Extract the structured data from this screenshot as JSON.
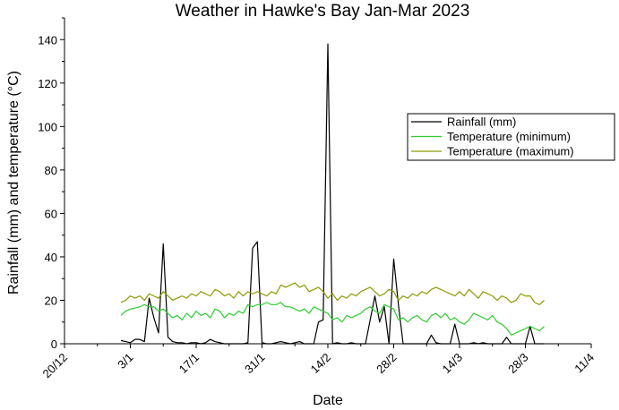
{
  "chart_data": {
    "type": "line",
    "title": "Weather in Hawke's Bay Jan-Mar 2023",
    "xlabel": "Date",
    "ylabel": "Rainfall (mm) and temperature (°C)",
    "xlim": [
      "2022-12-20",
      "2023-04-11"
    ],
    "ylim": [
      0,
      150
    ],
    "x_ticks": [
      {
        "date": "2022-12-20",
        "label": "20/12"
      },
      {
        "date": "2023-01-03",
        "label": "3/1"
      },
      {
        "date": "2023-01-17",
        "label": "17/1"
      },
      {
        "date": "2023-01-31",
        "label": "31/1"
      },
      {
        "date": "2023-02-14",
        "label": "14/2"
      },
      {
        "date": "2023-02-28",
        "label": "28/2"
      },
      {
        "date": "2023-03-14",
        "label": "14/3"
      },
      {
        "date": "2023-03-28",
        "label": "28/3"
      },
      {
        "date": "2023-04-11",
        "label": "11/4"
      }
    ],
    "y_ticks": [
      0,
      20,
      40,
      60,
      80,
      100,
      120,
      140
    ],
    "legend_position": "right",
    "series": [
      {
        "name": "Rainfall (mm)",
        "color": "#000000",
        "points": [
          [
            "2023-01-01",
            1.5
          ],
          [
            "2023-01-02",
            1
          ],
          [
            "2023-01-03",
            0.5
          ],
          [
            "2023-01-04",
            2
          ],
          [
            "2023-01-05",
            2
          ],
          [
            "2023-01-06",
            1
          ],
          [
            "2023-01-07",
            21
          ],
          [
            "2023-01-08",
            12
          ],
          [
            "2023-01-09",
            5
          ],
          [
            "2023-01-10",
            46
          ],
          [
            "2023-01-11",
            3
          ],
          [
            "2023-01-12",
            1
          ],
          [
            "2023-01-13",
            0.5
          ],
          [
            "2023-01-14",
            0.5
          ],
          [
            "2023-01-15",
            0
          ],
          [
            "2023-01-16",
            0.5
          ],
          [
            "2023-01-17",
            0.5
          ],
          [
            "2023-01-18",
            0
          ],
          [
            "2023-01-19",
            0.5
          ],
          [
            "2023-01-20",
            2
          ],
          [
            "2023-01-21",
            1
          ],
          [
            "2023-01-22",
            0.5
          ],
          [
            "2023-01-23",
            0
          ],
          [
            "2023-01-24",
            0
          ],
          [
            "2023-01-25",
            0
          ],
          [
            "2023-01-26",
            0
          ],
          [
            "2023-01-27",
            0
          ],
          [
            "2023-01-28",
            0.5
          ],
          [
            "2023-01-29",
            44
          ],
          [
            "2023-01-30",
            47
          ],
          [
            "2023-01-31",
            0.5
          ],
          [
            "2023-02-01",
            0
          ],
          [
            "2023-02-02",
            0
          ],
          [
            "2023-02-03",
            0.5
          ],
          [
            "2023-02-04",
            1
          ],
          [
            "2023-02-05",
            0.5
          ],
          [
            "2023-02-06",
            0
          ],
          [
            "2023-02-07",
            0.5
          ],
          [
            "2023-02-08",
            1
          ],
          [
            "2023-02-09",
            0
          ],
          [
            "2023-02-10",
            0
          ],
          [
            "2023-02-11",
            0
          ],
          [
            "2023-02-12",
            10
          ],
          [
            "2023-02-13",
            11
          ],
          [
            "2023-02-14",
            138
          ],
          [
            "2023-02-15",
            0
          ],
          [
            "2023-02-16",
            0.5
          ],
          [
            "2023-02-17",
            0
          ],
          [
            "2023-02-18",
            0
          ],
          [
            "2023-02-19",
            0.5
          ],
          [
            "2023-02-20",
            0
          ],
          [
            "2023-02-21",
            0
          ],
          [
            "2023-02-22",
            0
          ],
          [
            "2023-02-23",
            11
          ],
          [
            "2023-02-24",
            22
          ],
          [
            "2023-02-25",
            10
          ],
          [
            "2023-02-26",
            17
          ],
          [
            "2023-02-27",
            0
          ],
          [
            "2023-02-28",
            39
          ],
          [
            "2023-03-01",
            18
          ],
          [
            "2023-03-02",
            0
          ],
          [
            "2023-03-03",
            0
          ],
          [
            "2023-03-04",
            0
          ],
          [
            "2023-03-05",
            0
          ],
          [
            "2023-03-06",
            0
          ],
          [
            "2023-03-07",
            0
          ],
          [
            "2023-03-08",
            4
          ],
          [
            "2023-03-09",
            0.5
          ],
          [
            "2023-03-10",
            0
          ],
          [
            "2023-03-11",
            0
          ],
          [
            "2023-03-12",
            0
          ],
          [
            "2023-03-13",
            9
          ],
          [
            "2023-03-14",
            0
          ],
          [
            "2023-03-15",
            0
          ],
          [
            "2023-03-16",
            0
          ],
          [
            "2023-03-17",
            0.5
          ],
          [
            "2023-03-18",
            0
          ],
          [
            "2023-03-19",
            0.5
          ],
          [
            "2023-03-20",
            0
          ],
          [
            "2023-03-21",
            0
          ],
          [
            "2023-03-22",
            0
          ],
          [
            "2023-03-23",
            0
          ],
          [
            "2023-03-24",
            3
          ],
          [
            "2023-03-25",
            0
          ],
          [
            "2023-03-26",
            0
          ],
          [
            "2023-03-27",
            0
          ],
          [
            "2023-03-28",
            0
          ],
          [
            "2023-03-29",
            8
          ],
          [
            "2023-03-30",
            0
          ],
          [
            "2023-03-31",
            0
          ],
          [
            "2023-04-01",
            0
          ]
        ]
      },
      {
        "name": "Temperature (minimum)",
        "color": "#2ecc2e",
        "points": [
          [
            "2023-01-01",
            13
          ],
          [
            "2023-01-02",
            15
          ],
          [
            "2023-01-03",
            16
          ],
          [
            "2023-01-04",
            16.5
          ],
          [
            "2023-01-05",
            17
          ],
          [
            "2023-01-06",
            18
          ],
          [
            "2023-01-07",
            17
          ],
          [
            "2023-01-08",
            17
          ],
          [
            "2023-01-09",
            15
          ],
          [
            "2023-01-10",
            16
          ],
          [
            "2023-01-11",
            14
          ],
          [
            "2023-01-12",
            12
          ],
          [
            "2023-01-13",
            13
          ],
          [
            "2023-01-14",
            11
          ],
          [
            "2023-01-15",
            14
          ],
          [
            "2023-01-16",
            12
          ],
          [
            "2023-01-17",
            15
          ],
          [
            "2023-01-18",
            13
          ],
          [
            "2023-01-19",
            14
          ],
          [
            "2023-01-20",
            12
          ],
          [
            "2023-01-21",
            16
          ],
          [
            "2023-01-22",
            15
          ],
          [
            "2023-01-23",
            12
          ],
          [
            "2023-01-24",
            14
          ],
          [
            "2023-01-25",
            13
          ],
          [
            "2023-01-26",
            15
          ],
          [
            "2023-01-27",
            14
          ],
          [
            "2023-01-28",
            18
          ],
          [
            "2023-01-29",
            17
          ],
          [
            "2023-01-30",
            18
          ],
          [
            "2023-01-31",
            18
          ],
          [
            "2023-02-01",
            19
          ],
          [
            "2023-02-02",
            18
          ],
          [
            "2023-02-03",
            18
          ],
          [
            "2023-02-04",
            19
          ],
          [
            "2023-02-05",
            17
          ],
          [
            "2023-02-06",
            17
          ],
          [
            "2023-02-07",
            16
          ],
          [
            "2023-02-08",
            15
          ],
          [
            "2023-02-09",
            16
          ],
          [
            "2023-02-10",
            14
          ],
          [
            "2023-02-11",
            17
          ],
          [
            "2023-02-12",
            16
          ],
          [
            "2023-02-13",
            15
          ],
          [
            "2023-02-14",
            14
          ],
          [
            "2023-02-15",
            11
          ],
          [
            "2023-02-16",
            12
          ],
          [
            "2023-02-17",
            10
          ],
          [
            "2023-02-18",
            13
          ],
          [
            "2023-02-19",
            12
          ],
          [
            "2023-02-20",
            13
          ],
          [
            "2023-02-21",
            14
          ],
          [
            "2023-02-22",
            16
          ],
          [
            "2023-02-23",
            17
          ],
          [
            "2023-02-24",
            15
          ],
          [
            "2023-02-25",
            14
          ],
          [
            "2023-02-26",
            18
          ],
          [
            "2023-02-27",
            17
          ],
          [
            "2023-02-28",
            16
          ],
          [
            "2023-03-01",
            11
          ],
          [
            "2023-03-02",
            12
          ],
          [
            "2023-03-03",
            10
          ],
          [
            "2023-03-04",
            12
          ],
          [
            "2023-03-05",
            13
          ],
          [
            "2023-03-06",
            11
          ],
          [
            "2023-03-07",
            10
          ],
          [
            "2023-03-08",
            13
          ],
          [
            "2023-03-09",
            14
          ],
          [
            "2023-03-10",
            12
          ],
          [
            "2023-03-11",
            14
          ],
          [
            "2023-03-12",
            11
          ],
          [
            "2023-03-13",
            12
          ],
          [
            "2023-03-14",
            10
          ],
          [
            "2023-03-15",
            9
          ],
          [
            "2023-03-16",
            11
          ],
          [
            "2023-03-17",
            14
          ],
          [
            "2023-03-18",
            13
          ],
          [
            "2023-03-19",
            12
          ],
          [
            "2023-03-20",
            11
          ],
          [
            "2023-03-21",
            13
          ],
          [
            "2023-03-22",
            10
          ],
          [
            "2023-03-23",
            9
          ],
          [
            "2023-03-24",
            7
          ],
          [
            "2023-03-25",
            4
          ],
          [
            "2023-03-26",
            5
          ],
          [
            "2023-03-27",
            6
          ],
          [
            "2023-03-28",
            7
          ],
          [
            "2023-03-29",
            8
          ],
          [
            "2023-03-30",
            7
          ],
          [
            "2023-03-31",
            6
          ],
          [
            "2023-04-01",
            8
          ]
        ]
      },
      {
        "name": "Temperature (maximum)",
        "color": "#8a9a00",
        "points": [
          [
            "2023-01-01",
            19
          ],
          [
            "2023-01-02",
            20
          ],
          [
            "2023-01-03",
            22
          ],
          [
            "2023-01-04",
            21
          ],
          [
            "2023-01-05",
            22
          ],
          [
            "2023-01-06",
            20
          ],
          [
            "2023-01-07",
            23
          ],
          [
            "2023-01-08",
            22
          ],
          [
            "2023-01-09",
            21
          ],
          [
            "2023-01-10",
            24
          ],
          [
            "2023-01-11",
            22
          ],
          [
            "2023-01-12",
            20
          ],
          [
            "2023-01-13",
            21
          ],
          [
            "2023-01-14",
            22
          ],
          [
            "2023-01-15",
            21
          ],
          [
            "2023-01-16",
            23
          ],
          [
            "2023-01-17",
            22
          ],
          [
            "2023-01-18",
            24
          ],
          [
            "2023-01-19",
            23
          ],
          [
            "2023-01-20",
            22
          ],
          [
            "2023-01-21",
            25
          ],
          [
            "2023-01-22",
            24
          ],
          [
            "2023-01-23",
            22
          ],
          [
            "2023-01-24",
            23
          ],
          [
            "2023-01-25",
            21
          ],
          [
            "2023-01-26",
            24
          ],
          [
            "2023-01-27",
            22
          ],
          [
            "2023-01-28",
            24
          ],
          [
            "2023-01-29",
            23
          ],
          [
            "2023-01-30",
            24
          ],
          [
            "2023-01-31",
            23
          ],
          [
            "2023-02-01",
            22
          ],
          [
            "2023-02-02",
            24
          ],
          [
            "2023-02-03",
            23
          ],
          [
            "2023-02-04",
            27
          ],
          [
            "2023-02-05",
            26
          ],
          [
            "2023-02-06",
            27
          ],
          [
            "2023-02-07",
            28
          ],
          [
            "2023-02-08",
            26
          ],
          [
            "2023-02-09",
            27
          ],
          [
            "2023-02-10",
            24
          ],
          [
            "2023-02-11",
            25
          ],
          [
            "2023-02-12",
            26
          ],
          [
            "2023-02-13",
            24
          ],
          [
            "2023-02-14",
            21
          ],
          [
            "2023-02-15",
            23
          ],
          [
            "2023-02-16",
            20
          ],
          [
            "2023-02-17",
            22
          ],
          [
            "2023-02-18",
            21
          ],
          [
            "2023-02-19",
            23
          ],
          [
            "2023-02-20",
            22
          ],
          [
            "2023-02-21",
            24
          ],
          [
            "2023-02-22",
            25
          ],
          [
            "2023-02-23",
            26
          ],
          [
            "2023-02-24",
            24
          ],
          [
            "2023-02-25",
            22
          ],
          [
            "2023-02-26",
            23
          ],
          [
            "2023-02-27",
            25
          ],
          [
            "2023-02-28",
            24
          ],
          [
            "2023-03-01",
            20
          ],
          [
            "2023-03-02",
            22
          ],
          [
            "2023-03-03",
            21
          ],
          [
            "2023-03-04",
            23
          ],
          [
            "2023-03-05",
            22
          ],
          [
            "2023-03-06",
            24
          ],
          [
            "2023-03-07",
            23
          ],
          [
            "2023-03-08",
            25
          ],
          [
            "2023-03-09",
            26
          ],
          [
            "2023-03-10",
            25
          ],
          [
            "2023-03-11",
            24
          ],
          [
            "2023-03-12",
            23
          ],
          [
            "2023-03-13",
            22
          ],
          [
            "2023-03-14",
            24
          ],
          [
            "2023-03-15",
            22
          ],
          [
            "2023-03-16",
            25
          ],
          [
            "2023-03-17",
            23
          ],
          [
            "2023-03-18",
            21
          ],
          [
            "2023-03-19",
            24
          ],
          [
            "2023-03-20",
            23
          ],
          [
            "2023-03-21",
            22
          ],
          [
            "2023-03-22",
            20
          ],
          [
            "2023-03-23",
            22
          ],
          [
            "2023-03-24",
            21
          ],
          [
            "2023-03-25",
            19
          ],
          [
            "2023-03-26",
            20
          ],
          [
            "2023-03-27",
            23
          ],
          [
            "2023-03-28",
            22
          ],
          [
            "2023-03-29",
            22
          ],
          [
            "2023-03-30",
            19
          ],
          [
            "2023-03-31",
            18
          ],
          [
            "2023-04-01",
            20
          ]
        ]
      }
    ]
  }
}
